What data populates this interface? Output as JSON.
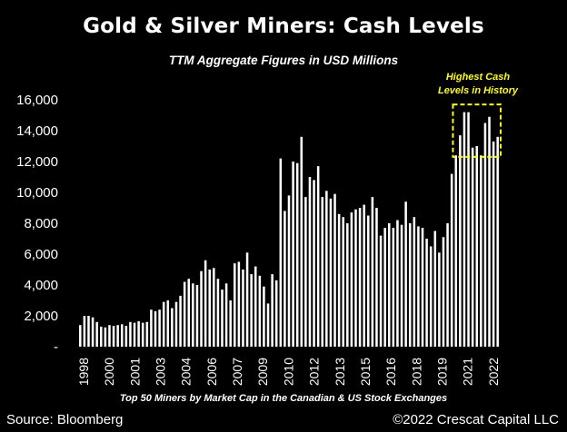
{
  "title": "Gold & Silver Miners: Cash Levels",
  "subtitle": "TTM Aggregate Figures in USD Millions",
  "annotation": "Highest Cash Levels in History",
  "footnote": "Top 50 Miners by Market Cap in the Canadian & US Stock Exchanges",
  "source": "Source: Bloomberg",
  "copyright": "©2022 Crescat Capital LLC",
  "colors": {
    "background": "#000000",
    "bars": "#ffffff",
    "text": "#ffffff",
    "highlight": "#ffff00"
  },
  "chart_data": {
    "type": "bar",
    "ylim": [
      0,
      16000
    ],
    "y_ticks": [
      "-",
      "2,000",
      "4,000",
      "6,000",
      "8,000",
      "10,000",
      "12,000",
      "14,000",
      "16,000"
    ],
    "x_ticks": [
      "1998",
      "2000",
      "2001",
      "2003",
      "2004",
      "2006",
      "2007",
      "2009",
      "2010",
      "2012",
      "2013",
      "2015",
      "2016",
      "2018",
      "2019",
      "2021",
      "2022"
    ],
    "grid": false,
    "values": [
      1400,
      2000,
      2000,
      1900,
      1600,
      1300,
      1250,
      1400,
      1350,
      1400,
      1450,
      1350,
      1600,
      1550,
      1650,
      1550,
      1600,
      2400,
      2300,
      2400,
      2900,
      3000,
      2500,
      2900,
      3300,
      4200,
      4400,
      4100,
      4000,
      4900,
      5600,
      5000,
      5100,
      4400,
      3700,
      4100,
      3000,
      5400,
      5500,
      5000,
      6100,
      4700,
      5200,
      4600,
      3900,
      2800,
      4700,
      4300,
      12200,
      8800,
      9800,
      12000,
      11900,
      13600,
      9700,
      11000,
      10800,
      11700,
      9700,
      10100,
      9600,
      9900,
      8600,
      8400,
      8000,
      8700,
      8900,
      9000,
      9200,
      8500,
      9700,
      9000,
      7200,
      7700,
      8000,
      7700,
      8200,
      7900,
      9400,
      8000,
      8400,
      7800,
      7700,
      7000,
      6500,
      7500,
      6100,
      7100,
      8000,
      11200,
      12400,
      13700,
      15200,
      15200,
      12900,
      13000,
      12400,
      14500,
      14900,
      13300,
      13600
    ],
    "highlight_box": {
      "from_index": 90,
      "to_index": 100,
      "y_from": 12300,
      "y_to": 15700
    }
  }
}
